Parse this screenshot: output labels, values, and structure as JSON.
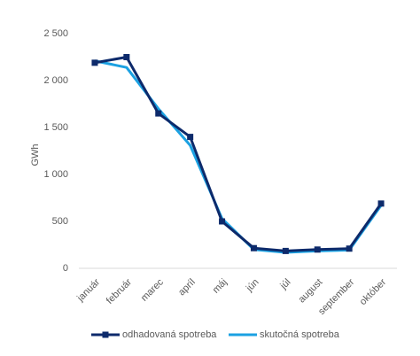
{
  "chart_data": {
    "type": "line",
    "y_label": "GWh",
    "categories": [
      "január",
      "február",
      "marec",
      "apríl",
      "máj",
      "jún",
      "júl",
      "august",
      "september",
      "október"
    ],
    "series": [
      {
        "name": "odhadovaná spotreba",
        "color": "#0d2a6b",
        "marker": "square",
        "values": [
          2190,
          2250,
          1650,
          1400,
          500,
          215,
          185,
          200,
          210,
          690
        ]
      },
      {
        "name": "skutočná spotreba",
        "color": "#1ba1e2",
        "marker": "none",
        "values": [
          2210,
          2140,
          1700,
          1310,
          530,
          200,
          170,
          185,
          195,
          670
        ]
      }
    ],
    "ylim": [
      0,
      2500
    ],
    "yticks": [
      0,
      500,
      {
        "value": 1000,
        "label": "1 000"
      },
      {
        "value": 1500,
        "label": "1 500"
      },
      {
        "value": 2000,
        "label": "2 000"
      },
      {
        "value": 2500,
        "label": "2 500"
      }
    ],
    "grid": false,
    "legend": "bottom"
  }
}
